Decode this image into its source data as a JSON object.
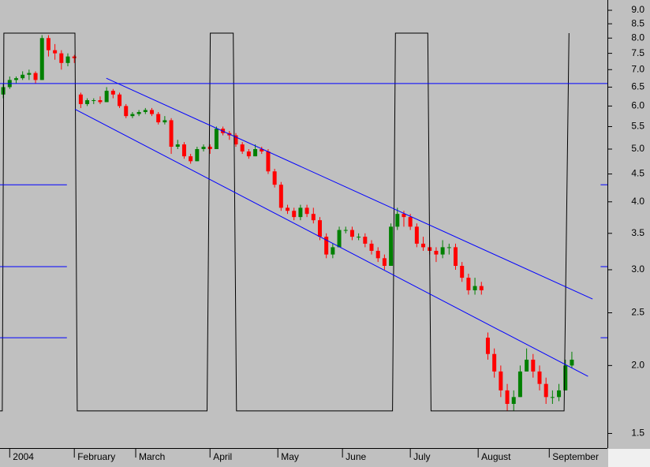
{
  "chart_data": {
    "type": "candlestick",
    "log_scale": true,
    "up_color": "#008000",
    "down_color": "#ff0000",
    "xlim": [
      -1,
      187
    ],
    "ylim": [
      1.41,
      9.4
    ],
    "xticks": [
      {
        "value": 2,
        "label": "2004"
      },
      {
        "value": 22,
        "label": "February"
      },
      {
        "value": 41,
        "label": "March"
      },
      {
        "value": 64,
        "label": "April"
      },
      {
        "value": 85,
        "label": "May"
      },
      {
        "value": 105,
        "label": "June"
      },
      {
        "value": 126,
        "label": "July"
      },
      {
        "value": 147,
        "label": "August"
      },
      {
        "value": 169,
        "label": "September"
      }
    ],
    "yticks": [
      1.5,
      {
        "value": 2,
        "label": "2.0"
      },
      2.5,
      {
        "value": 3,
        "label": "3.0"
      },
      3.5,
      {
        "value": 4,
        "label": "4.0"
      },
      4.5,
      {
        "value": 5,
        "label": "5.0"
      },
      5.5,
      {
        "value": 6,
        "label": "6.0"
      },
      6.5,
      {
        "value": 7,
        "label": "7.0"
      },
      7.5,
      {
        "value": 8,
        "label": "8.0"
      },
      8.5,
      {
        "value": 9,
        "label": "9.0"
      }
    ],
    "candles": {
      "x": [
        0,
        2,
        4,
        6,
        8,
        10,
        12,
        14,
        16,
        18,
        20,
        22,
        24,
        26,
        28,
        30,
        32,
        34,
        36,
        38,
        40,
        42,
        44,
        46,
        48,
        50,
        52,
        54,
        56,
        58,
        60,
        62,
        64,
        66,
        68,
        70,
        72,
        74,
        76,
        78,
        80,
        82,
        84,
        86,
        88,
        90,
        92,
        94,
        96,
        98,
        100,
        102,
        104,
        106,
        108,
        110,
        112,
        114,
        116,
        118,
        120,
        122,
        124,
        126,
        128,
        130,
        132,
        134,
        136,
        138,
        140,
        142,
        144,
        146,
        148,
        150,
        152,
        154,
        156,
        158,
        160,
        162,
        164,
        166,
        168,
        170,
        172,
        174,
        176
      ],
      "open": [
        6.3,
        6.5,
        6.7,
        6.75,
        6.85,
        6.9,
        6.7,
        8.0,
        7.6,
        7.5,
        7.2,
        7.4,
        6.3,
        6.05,
        6.15,
        6.15,
        6.1,
        6.4,
        6.3,
        6.0,
        5.75,
        5.8,
        5.85,
        5.9,
        5.8,
        5.6,
        5.65,
        5.05,
        5.1,
        4.85,
        4.75,
        5.0,
        5.05,
        5.0,
        5.45,
        5.35,
        5.3,
        5.1,
        4.95,
        4.85,
        5.0,
        4.95,
        4.55,
        4.3,
        3.9,
        3.85,
        3.75,
        3.9,
        3.8,
        3.7,
        3.45,
        3.2,
        3.3,
        3.55,
        3.55,
        3.45,
        3.45,
        3.35,
        3.25,
        3.15,
        3.05,
        3.6,
        3.8,
        3.75,
        3.6,
        3.35,
        3.3,
        3.25,
        3.2,
        3.3,
        3.3,
        3.05,
        2.9,
        2.75,
        2.8,
        2.25,
        2.1,
        1.95,
        1.8,
        1.7,
        1.75,
        1.95,
        2.05,
        1.95,
        1.85,
        1.75,
        1.75,
        1.8,
        2.0
      ],
      "high": [
        6.6,
        6.8,
        6.8,
        6.95,
        7.0,
        6.95,
        8.1,
        8.1,
        7.8,
        7.6,
        7.5,
        7.45,
        6.35,
        6.2,
        6.2,
        6.25,
        6.5,
        6.45,
        6.35,
        6.05,
        5.85,
        5.9,
        5.95,
        5.95,
        5.85,
        5.75,
        5.7,
        5.2,
        5.15,
        4.9,
        5.05,
        5.1,
        5.1,
        5.5,
        5.5,
        5.4,
        5.35,
        5.15,
        5.0,
        5.1,
        5.05,
        5.0,
        4.6,
        4.35,
        3.95,
        3.9,
        3.95,
        3.95,
        3.9,
        3.75,
        3.5,
        3.35,
        3.6,
        3.6,
        3.6,
        3.5,
        3.5,
        3.4,
        3.3,
        3.2,
        3.65,
        3.9,
        3.85,
        3.8,
        3.65,
        3.45,
        3.4,
        3.3,
        3.4,
        3.35,
        3.35,
        3.1,
        2.95,
        2.9,
        2.85,
        2.3,
        2.15,
        2.0,
        1.85,
        1.8,
        2.0,
        2.15,
        2.1,
        2.0,
        1.9,
        1.8,
        1.85,
        2.05,
        2.12
      ],
      "low": [
        6.2,
        6.45,
        6.6,
        6.7,
        6.7,
        6.6,
        6.7,
        7.4,
        7.3,
        7.0,
        7.1,
        7.2,
        5.95,
        6.0,
        6.05,
        6.05,
        6.1,
        6.2,
        5.95,
        5.7,
        5.7,
        5.75,
        5.8,
        5.75,
        5.55,
        5.55,
        4.9,
        5.0,
        4.8,
        4.7,
        4.75,
        4.95,
        4.9,
        5.0,
        5.3,
        5.2,
        5.05,
        4.9,
        4.8,
        4.85,
        4.9,
        4.5,
        4.25,
        3.85,
        3.8,
        3.7,
        3.7,
        3.75,
        3.65,
        3.4,
        3.15,
        3.15,
        3.3,
        3.5,
        3.4,
        3.4,
        3.3,
        3.2,
        3.1,
        3.0,
        3.05,
        3.55,
        3.6,
        3.55,
        3.3,
        3.25,
        3.2,
        3.1,
        3.15,
        3.2,
        3.0,
        2.85,
        2.7,
        2.7,
        2.7,
        2.05,
        1.9,
        1.75,
        1.65,
        1.65,
        1.75,
        1.95,
        1.9,
        1.8,
        1.7,
        1.7,
        1.72,
        1.8,
        1.98
      ],
      "close": [
        6.5,
        6.7,
        6.75,
        6.85,
        6.9,
        6.7,
        8.0,
        7.6,
        7.5,
        7.2,
        7.4,
        7.35,
        6.05,
        6.15,
        6.15,
        6.1,
        6.4,
        6.3,
        6.0,
        5.75,
        5.8,
        5.85,
        5.9,
        5.8,
        5.6,
        5.65,
        5.05,
        5.1,
        4.85,
        4.75,
        5.0,
        5.05,
        5.0,
        5.45,
        5.35,
        5.3,
        5.1,
        4.95,
        4.85,
        5.0,
        4.95,
        4.55,
        4.3,
        3.9,
        3.85,
        3.75,
        3.9,
        3.8,
        3.7,
        3.45,
        3.2,
        3.3,
        3.55,
        3.55,
        3.45,
        3.45,
        3.35,
        3.25,
        3.15,
        3.05,
        3.6,
        3.8,
        3.75,
        3.6,
        3.35,
        3.3,
        3.25,
        3.2,
        3.3,
        3.3,
        3.05,
        2.9,
        2.75,
        2.8,
        2.75,
        2.1,
        1.95,
        1.8,
        1.7,
        1.75,
        1.95,
        2.05,
        1.95,
        1.85,
        1.75,
        1.75,
        1.8,
        2.0,
        2.05
      ]
    },
    "lines": [
      {
        "color": "#000000",
        "x": [
          -1,
          -0.3,
          0.2,
          22.2,
          22.9,
          63.1,
          64.1,
          71.2,
          72.2,
          120.5,
          121.4,
          131.4,
          132.4,
          173.6,
          175.1
        ],
        "values": [
          1.65,
          1.65,
          8.17,
          8.17,
          1.65,
          1.65,
          8.17,
          8.17,
          1.65,
          1.65,
          8.17,
          8.17,
          1.65,
          1.65,
          8.17
        ]
      },
      {
        "color": "#0000ff",
        "x": [
          -1,
          187
        ],
        "values": [
          6.6,
          6.6
        ]
      },
      {
        "color": "#0000ff",
        "x": [
          -1,
          19.7,
          19.7,
          184.9,
          187
        ],
        "values": [
          4.3,
          4.3,
          null,
          4.3,
          4.3
        ]
      },
      {
        "color": "#0000ff",
        "x": [
          -1,
          19.7,
          19.7,
          184.9,
          187
        ],
        "values": [
          3.04,
          3.04,
          null,
          3.04,
          3.04
        ]
      },
      {
        "color": "#0000ff",
        "x": [
          -1,
          19.7,
          19.7,
          184.9,
          187
        ],
        "values": [
          2.25,
          2.25,
          null,
          2.25,
          2.25
        ]
      },
      {
        "color": "#0000ff",
        "x": [
          31.9,
          182.4
        ],
        "values": [
          6.75,
          2.65
        ]
      },
      {
        "color": "#0000ff",
        "x": [
          22.2,
          181
        ],
        "values": [
          5.92,
          1.91
        ]
      }
    ]
  }
}
